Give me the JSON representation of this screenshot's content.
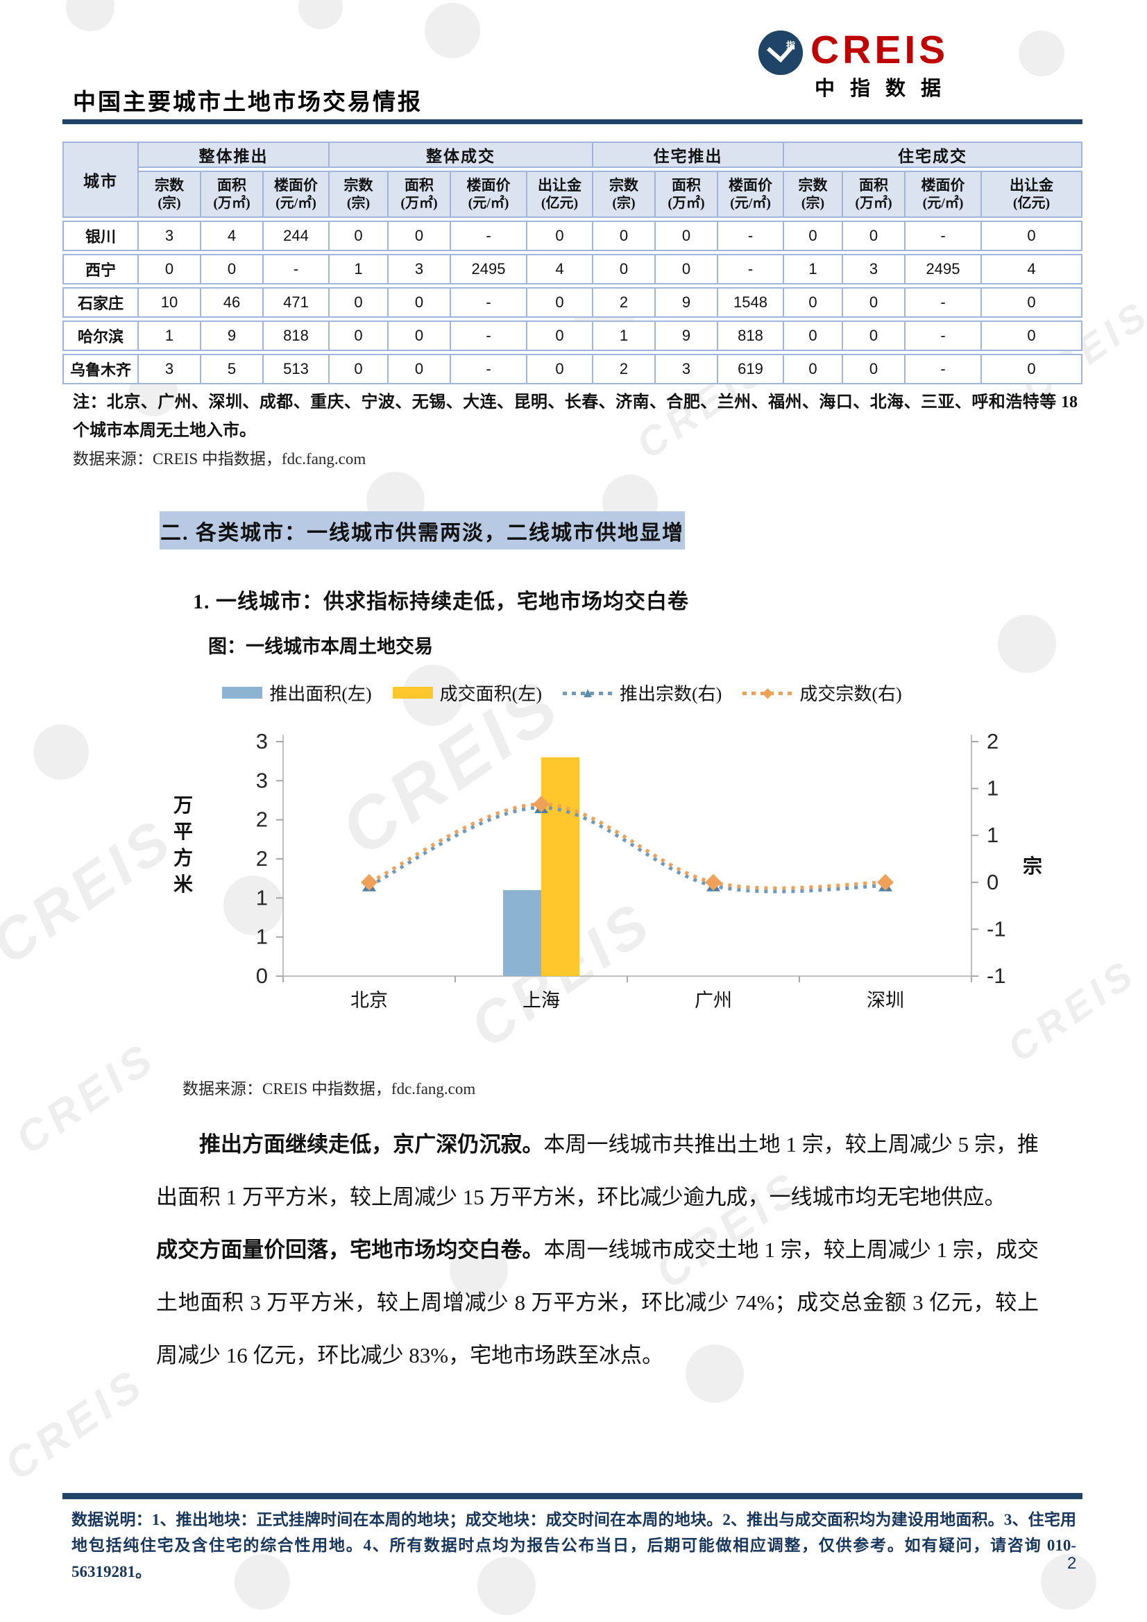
{
  "header": {
    "title": "中国主要城市土地市场交易情报",
    "brand": "CREIS",
    "brand_sub": "中指数据",
    "badge": "中指"
  },
  "table": {
    "city_col": "城市",
    "groups": [
      {
        "label": "整体推出",
        "cols": [
          [
            "宗数",
            "(宗)"
          ],
          [
            "面积",
            "(万㎡)"
          ],
          [
            "楼面价",
            "(元/㎡)"
          ]
        ]
      },
      {
        "label": "整体成交",
        "cols": [
          [
            "宗数",
            "(宗)"
          ],
          [
            "面积",
            "(万㎡)"
          ],
          [
            "楼面价",
            "(元/㎡)"
          ],
          [
            "出让金",
            "(亿元)"
          ]
        ]
      },
      {
        "label": "住宅推出",
        "cols": [
          [
            "宗数",
            "(宗)"
          ],
          [
            "面积",
            "(万㎡)"
          ],
          [
            "楼面价",
            "(元/㎡)"
          ]
        ]
      },
      {
        "label": "住宅成交",
        "cols": [
          [
            "宗数",
            "(宗)"
          ],
          [
            "面积",
            "(万㎡)"
          ],
          [
            "楼面价",
            "(元/㎡)"
          ],
          [
            "出让金",
            "(亿元)"
          ]
        ]
      }
    ],
    "rows": [
      {
        "city": "银川",
        "values": [
          "3",
          "4",
          "244",
          "0",
          "0",
          "-",
          "0",
          "0",
          "0",
          "-",
          "0",
          "0",
          "-",
          "0"
        ]
      },
      {
        "city": "西宁",
        "values": [
          "0",
          "0",
          "-",
          "1",
          "3",
          "2495",
          "4",
          "0",
          "0",
          "-",
          "1",
          "3",
          "2495",
          "4"
        ]
      },
      {
        "city": "石家庄",
        "values": [
          "10",
          "46",
          "471",
          "0",
          "0",
          "-",
          "0",
          "2",
          "9",
          "1548",
          "0",
          "0",
          "-",
          "0"
        ]
      },
      {
        "city": "哈尔滨",
        "values": [
          "1",
          "9",
          "818",
          "0",
          "0",
          "-",
          "0",
          "1",
          "9",
          "818",
          "0",
          "0",
          "-",
          "0"
        ]
      },
      {
        "city": "乌鲁木齐",
        "values": [
          "3",
          "5",
          "513",
          "0",
          "0",
          "-",
          "0",
          "2",
          "3",
          "619",
          "0",
          "0",
          "-",
          "0"
        ]
      }
    ]
  },
  "note": "注：北京、广州、深圳、成都、重庆、宁波、无锡、大连、昆明、长春、济南、合肥、兰州、福州、海口、北海、三亚、呼和浩特等 18 个城市本周无土地入市。",
  "source_table": "数据来源：CREIS 中指数据，fdc.fang.com",
  "section": {
    "heading": "二. 各类城市：一线城市供需两淡，二线城市供地显增",
    "sub_heading": "1. 一线城市：供求指标持续走低，宅地市场均交白卷",
    "chart_caption": "图：一线城市本周土地交易",
    "source_chart": "数据来源：CREIS 中指数据，fdc.fang.com"
  },
  "chart_data": {
    "type": "bar",
    "subtype": "combo-bar-line-dual-axis",
    "title": "图：一线城市本周土地交易",
    "categories": [
      "北京",
      "上海",
      "广州",
      "深圳"
    ],
    "series": [
      {
        "name": "推出面积(左)",
        "type": "bar",
        "axis": "left",
        "color": "#8CB4D2",
        "values": [
          0,
          1.1,
          0,
          0
        ]
      },
      {
        "name": "成交面积(左)",
        "type": "bar",
        "axis": "left",
        "color": "#FFC72C",
        "values": [
          0,
          2.8,
          0,
          0
        ]
      },
      {
        "name": "推出宗数(右)",
        "type": "line",
        "axis": "right",
        "color": "#6E99BB",
        "marker": "triangle",
        "values": [
          0,
          1,
          0,
          0
        ]
      },
      {
        "name": "成交宗数(右)",
        "type": "line",
        "axis": "right",
        "color": "#EFA15A",
        "marker": "diamond",
        "values": [
          0,
          1,
          0,
          0
        ]
      }
    ],
    "left_axis": {
      "title": "万平方米",
      "min": 0,
      "max": 3,
      "tick_labels": [
        "3",
        "3",
        "2",
        "2",
        "1",
        "1",
        "0"
      ]
    },
    "right_axis": {
      "title": "宗",
      "min": -1.2,
      "max": 1.8,
      "tick_labels": [
        "2",
        "1",
        "1",
        "0",
        "-1",
        "-1"
      ]
    },
    "legend_position": "top",
    "grid": false
  },
  "paragraphs": [
    {
      "lead": "推出方面继续走低，京广深仍沉寂。",
      "body": "本周一线城市共推出土地 1 宗，较上周减少 5 宗，推出面积 1 万平方米，较上周减少 15 万平方米，环比减少逾九成，一线城市均无宅地供应。"
    },
    {
      "lead": "成交方面量价回落，宅地市场均交白卷。",
      "body": "本周一线城市成交土地 1 宗，较上周减少 1 宗，成交土地面积 3 万平方米，较上周增减少 8 万平方米，环比减少 74%；成交总金额 3 亿元，较上周减少 16 亿元，环比减少 83%，宅地市场跌至冰点。"
    }
  ],
  "footer": {
    "note": "数据说明：1、推出地块：正式挂牌时间在本周的地块；成交地块：成交时间在本周的地块。2、推出与成交面积均为建设用地面积。3、住宅用地包括纯住宅及含住宅的综合性用地。4、所有数据时点均为报告公布当日，后期可能做相应调整，仅供参考。如有疑问，请咨询 010-56319281。",
    "page_number": "2"
  },
  "watermark_text": "CREIS",
  "colors": {
    "accent_navy": "#1F4467",
    "brand_red": "#C00000",
    "band_blue": "#B7C9E3",
    "table_border": "#9FB6DA",
    "table_header_bg": "#DBE3F1"
  }
}
